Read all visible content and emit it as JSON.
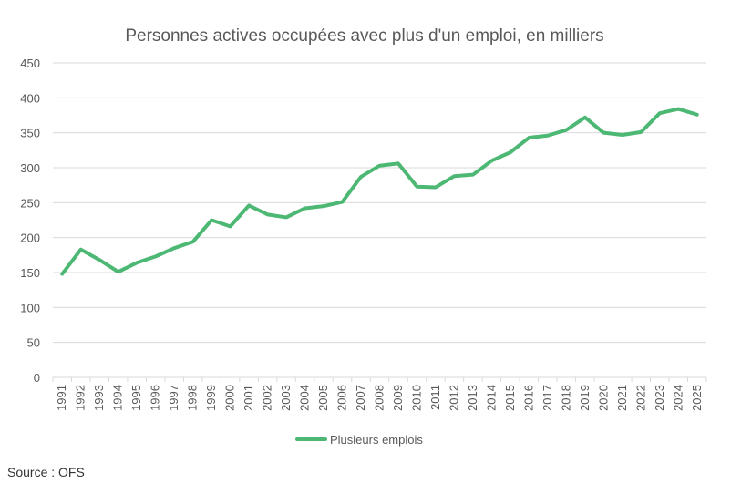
{
  "chart_data": {
    "type": "line",
    "title": "Personnes actives occupées avec plus d'un emploi, en milliers",
    "xlabel": "",
    "ylabel": "",
    "ylim": [
      0,
      450
    ],
    "yticks": [
      0,
      50,
      100,
      150,
      200,
      250,
      300,
      350,
      400,
      450
    ],
    "grid": true,
    "legend_position": "bottom",
    "categories": [
      "1991",
      "1992",
      "1993",
      "1994",
      "1995",
      "1996",
      "1997",
      "1998",
      "1999",
      "2000",
      "2001",
      "2002",
      "2003",
      "2004",
      "2005",
      "2006",
      "2007",
      "2008",
      "2009",
      "2010",
      "2011",
      "2012",
      "2013",
      "2014",
      "2015",
      "2016",
      "2017",
      "2018",
      "2019",
      "2020",
      "2021",
      "2022",
      "2023",
      "2024",
      "2025"
    ],
    "series": [
      {
        "name": "Plusieurs emplois",
        "color": "#4cb874",
        "values": [
          148,
          183,
          168,
          151,
          164,
          173,
          185,
          194,
          225,
          216,
          246,
          233,
          229,
          242,
          245,
          251,
          287,
          303,
          306,
          273,
          272,
          288,
          290,
          310,
          322,
          343,
          346,
          354,
          372,
          350,
          347,
          351,
          378,
          384,
          376
        ]
      }
    ]
  },
  "source": "Source : OFS"
}
